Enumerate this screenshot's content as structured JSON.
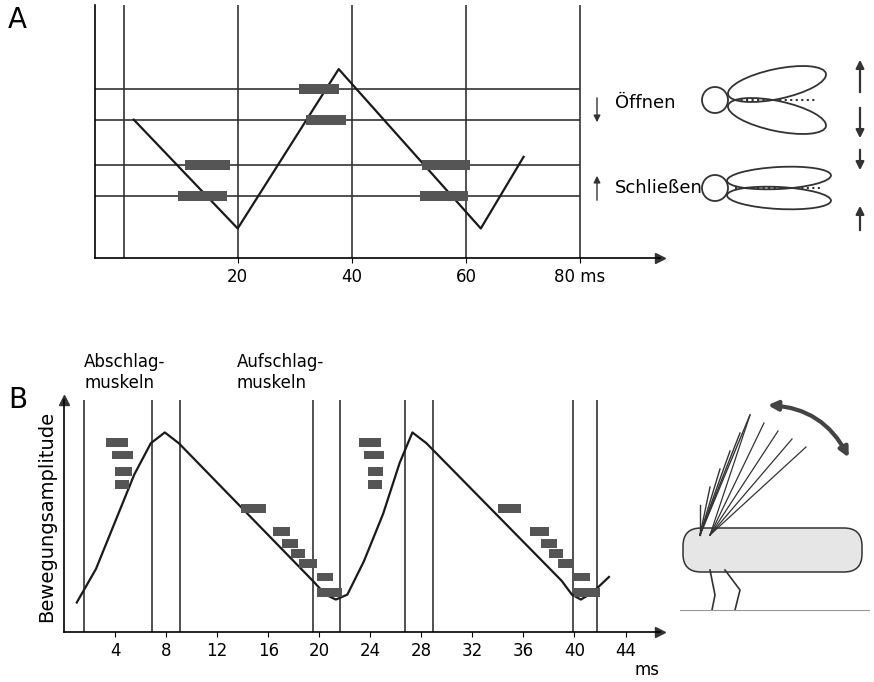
{
  "chart_data": [
    {
      "label": "A",
      "type": "line",
      "color": "#1a1a1a",
      "x": [
        1.8,
        20,
        37.7,
        62.6,
        70.1
      ],
      "values": [
        8.2,
        1.75,
        11.2,
        1.75,
        6.0
      ],
      "xlim": [
        -5,
        94
      ],
      "ylim": [
        0,
        15
      ],
      "xticks": [
        20,
        40,
        60,
        {
          "value": 80,
          "label": "80 ms"
        }
      ],
      "yticks": [],
      "tick_labels": "x",
      "vlines": [
        0,
        20,
        40,
        60,
        80
      ],
      "hlines": [
        10,
        8.2,
        5.5,
        3.7
      ],
      "annotations": [
        "Öffnen",
        "Schließen"
      ],
      "bursts": {
        "color": "#555555",
        "bars": [
          {
            "start": 30.7,
            "end": 37.7,
            "y": 10
          },
          {
            "start": 31.9,
            "end": 38.9,
            "y": 8.2
          },
          {
            "start": 10.7,
            "end": 18.6,
            "y": 5.5
          },
          {
            "start": 52.3,
            "end": 60.7,
            "y": 5.5
          },
          {
            "start": 9.5,
            "end": 18.2,
            "y": 3.7
          },
          {
            "start": 51.9,
            "end": 60.4,
            "y": 3.7
          }
        ]
      }
    },
    {
      "label": "B",
      "type": "line",
      "color": "#1a1a1a",
      "x": [
        1.0,
        2.5,
        4.0,
        5.5,
        6.8,
        7.9,
        9.0,
        19.5,
        20.5,
        21.3,
        22.2,
        23.5,
        25.0,
        26.3,
        27.3,
        28.4,
        39.0,
        39.8,
        40.5,
        41.4,
        42.7
      ],
      "values": [
        1.5,
        3.2,
        5.6,
        8.0,
        9.6,
        10.15,
        9.6,
        2.6,
        1.9,
        1.65,
        1.9,
        3.6,
        6.0,
        8.6,
        10.15,
        9.6,
        2.6,
        1.9,
        1.65,
        2.0,
        2.8
      ],
      "xlim": [
        0,
        46.7
      ],
      "ylim": [
        0,
        11.8
      ],
      "xticks": [
        4,
        8,
        12,
        16,
        20,
        24,
        28,
        32,
        36,
        40,
        44
      ],
      "yticks": [],
      "tick_labels": "x",
      "x_label": "ms",
      "y_label": "Bewegungsamplitude",
      "vlines": [
        1.6,
        6.9,
        9.1,
        19.5,
        21.6,
        26.7,
        28.9,
        39.9,
        41.8
      ],
      "annotations": [
        "Abschlag-\nmuskeln",
        "Aufschlag-\nmuskeln"
      ],
      "bursts": {
        "color": "#555555",
        "bars": [
          {
            "start": 3.3,
            "end": 5.0,
            "y": 9.65
          },
          {
            "start": 3.8,
            "end": 5.4,
            "y": 9.0
          },
          {
            "start": 4.0,
            "end": 5.3,
            "y": 8.15
          },
          {
            "start": 4.0,
            "end": 5.1,
            "y": 7.5
          },
          {
            "start": 13.9,
            "end": 15.8,
            "y": 6.3
          },
          {
            "start": 16.4,
            "end": 17.7,
            "y": 5.1
          },
          {
            "start": 17.1,
            "end": 18.3,
            "y": 4.5
          },
          {
            "start": 17.8,
            "end": 18.9,
            "y": 4.0
          },
          {
            "start": 18.4,
            "end": 19.8,
            "y": 3.5
          },
          {
            "start": 19.8,
            "end": 21.1,
            "y": 2.8
          },
          {
            "start": 19.8,
            "end": 21.8,
            "y": 2.0
          },
          {
            "start": 23.1,
            "end": 24.8,
            "y": 9.65
          },
          {
            "start": 23.5,
            "end": 25.1,
            "y": 9.0
          },
          {
            "start": 23.8,
            "end": 25.0,
            "y": 8.15
          },
          {
            "start": 23.8,
            "end": 24.9,
            "y": 7.5
          },
          {
            "start": 34.0,
            "end": 35.8,
            "y": 6.3
          },
          {
            "start": 36.5,
            "end": 38.0,
            "y": 5.1
          },
          {
            "start": 37.4,
            "end": 38.6,
            "y": 4.5
          },
          {
            "start": 38.0,
            "end": 39.1,
            "y": 4.0
          },
          {
            "start": 38.7,
            "end": 39.9,
            "y": 3.5
          },
          {
            "start": 39.9,
            "end": 41.2,
            "y": 2.8
          },
          {
            "start": 40.0,
            "end": 42.0,
            "y": 2.0
          }
        ]
      }
    }
  ]
}
